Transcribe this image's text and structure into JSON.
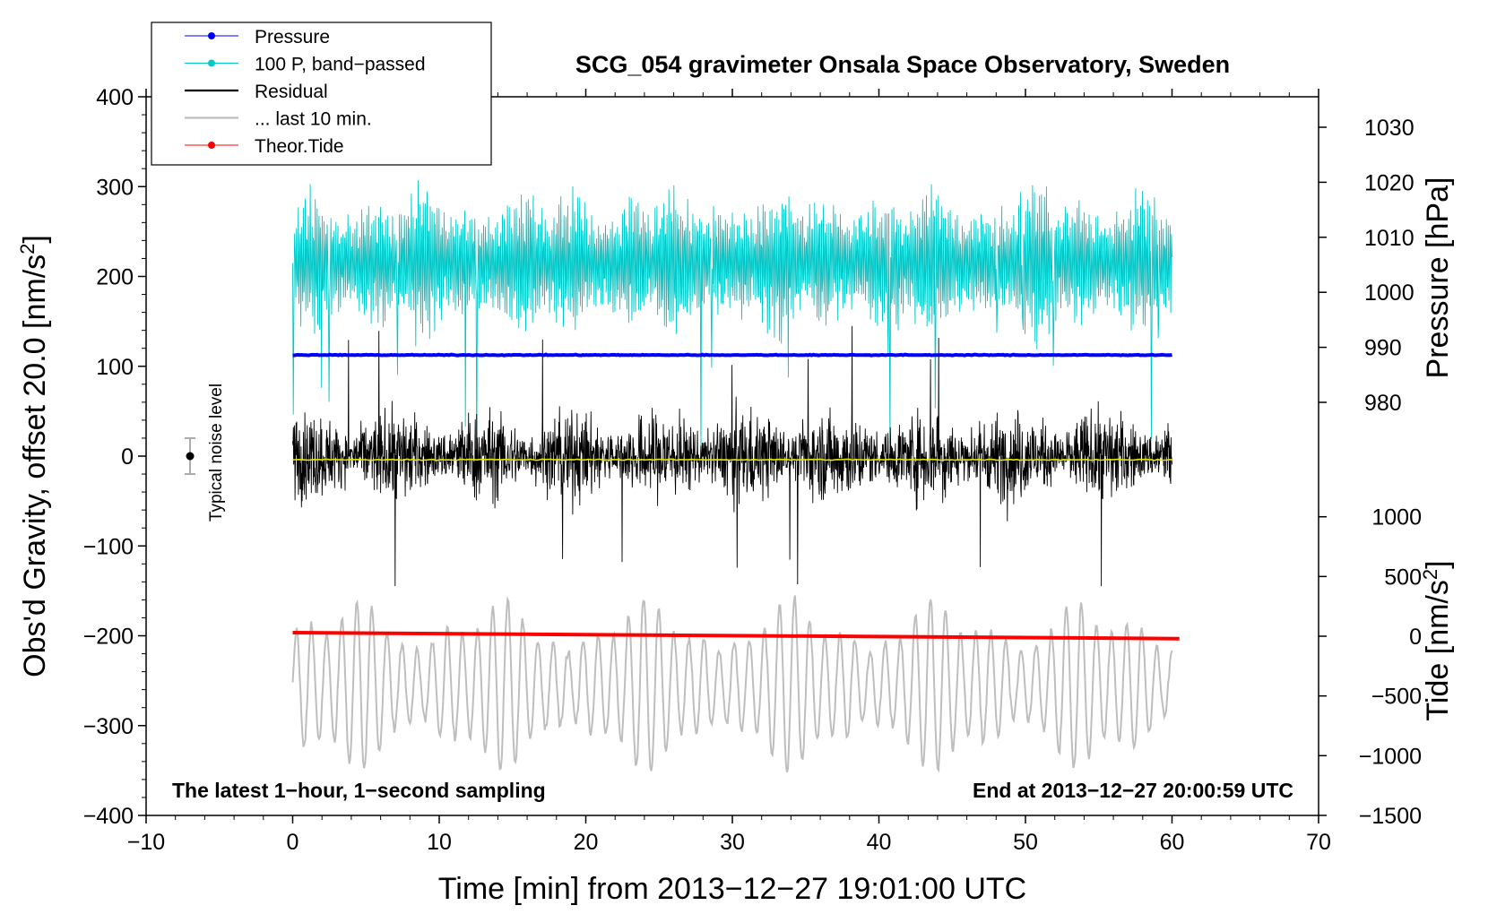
{
  "chart_data": {
    "type": "line",
    "title": "SCG_054 gravimeter Onsala Space Observatory, Sweden",
    "xlabel": "Time [min] from 2013−12−27 19:01:00 UTC",
    "ylabel_left_main": "Obs'd Gravity, offset 20.0 [nm/s",
    "ylabel_left_sup": "2",
    "ylabel_left_end": "]",
    "ylabel_right_pressure": "Pressure [hPa]",
    "ylabel_right_tide_main": "Tide [nm/s",
    "ylabel_right_tide_sup": "2",
    "ylabel_right_tide_end": "]",
    "xlim": [
      -10,
      70
    ],
    "ylim": [
      -400,
      400
    ],
    "pressure_ylim": [
      970,
      1035
    ],
    "tide_ylim": [
      -1500,
      1000
    ],
    "x_ticks": [
      {
        "value": -10,
        "label": "−10"
      },
      {
        "value": 0,
        "label": "0"
      },
      {
        "value": 10,
        "label": "10"
      },
      {
        "value": 20,
        "label": "20"
      },
      {
        "value": 30,
        "label": "30"
      },
      {
        "value": 40,
        "label": "40"
      },
      {
        "value": 50,
        "label": "50"
      },
      {
        "value": 60,
        "label": "60"
      },
      {
        "value": 70,
        "label": "70"
      }
    ],
    "y_ticks": [
      {
        "value": 400,
        "label": "400"
      },
      {
        "value": 300,
        "label": "300"
      },
      {
        "value": 200,
        "label": "200"
      },
      {
        "value": 100,
        "label": "100"
      },
      {
        "value": 0,
        "label": "0"
      },
      {
        "value": -100,
        "label": "−100"
      },
      {
        "value": -200,
        "label": "−200"
      },
      {
        "value": -300,
        "label": "−300"
      },
      {
        "value": -400,
        "label": "−400"
      }
    ],
    "pressure_ticks": [
      {
        "value": 980,
        "label": "980"
      },
      {
        "value": 990,
        "label": "990"
      },
      {
        "value": 1000,
        "label": "1000"
      },
      {
        "value": 1010,
        "label": "1010"
      },
      {
        "value": 1020,
        "label": "1020"
      },
      {
        "value": 1030,
        "label": "1030"
      }
    ],
    "tide_ticks": [
      {
        "value": 1000,
        "label": "1000"
      },
      {
        "value": 500,
        "label": "500"
      },
      {
        "value": 0,
        "label": "0"
      },
      {
        "value": -500,
        "label": "−500"
      },
      {
        "value": -1000,
        "label": "−1000"
      },
      {
        "value": -1500,
        "label": "−1500"
      }
    ],
    "legend": [
      {
        "name": "Pressure",
        "color": "#0000ff",
        "marker": true
      },
      {
        "name": "100 P, band−passed",
        "color": "#00c8c8",
        "marker": true
      },
      {
        "name": "Residual",
        "color": "#000000",
        "marker": false
      },
      {
        "name": "... last 10 min.",
        "color": "#bebebe",
        "marker": false
      },
      {
        "name": "Theor.Tide",
        "color": "#ff0000",
        "marker": true
      }
    ],
    "annotation_left": "The latest 1−hour, 1−second sampling",
    "annotation_right": "End at 2013−12−27 20:00:59 UTC",
    "noise_label": "Typical noise level",
    "noise_bar": {
      "x": -7,
      "center": 0,
      "half_range": 20
    },
    "series": [
      {
        "name": "Pressure",
        "color": "#0000ff",
        "axis": "pressure",
        "x_start": 0,
        "x_end": 60,
        "level": 988.6
      },
      {
        "name": "100 P, band−passed",
        "color": "#00c8c8",
        "axis": "gravity",
        "x_start": 0,
        "x_end": 60,
        "center": 215,
        "amplitude": 90
      },
      {
        "name": "Residual",
        "color": "#000000",
        "axis": "gravity",
        "x_start": 0,
        "x_end": 60,
        "center": 0,
        "amplitude": 60
      },
      {
        "name": "mean",
        "color": "#e5e500",
        "axis": "gravity",
        "x_start": 0,
        "x_end": 60,
        "level": -4
      },
      {
        "name": "... last 10 min.",
        "color": "#bebebe",
        "axis": "gravity",
        "x_start": 0,
        "x_end": 60,
        "center": -255,
        "amplitude": 90
      },
      {
        "name": "Theor.Tide",
        "color": "#ff0000",
        "axis": "tide",
        "x_start": 0,
        "x_end": 60.5,
        "start_value": 30,
        "end_value": -20
      }
    ]
  }
}
